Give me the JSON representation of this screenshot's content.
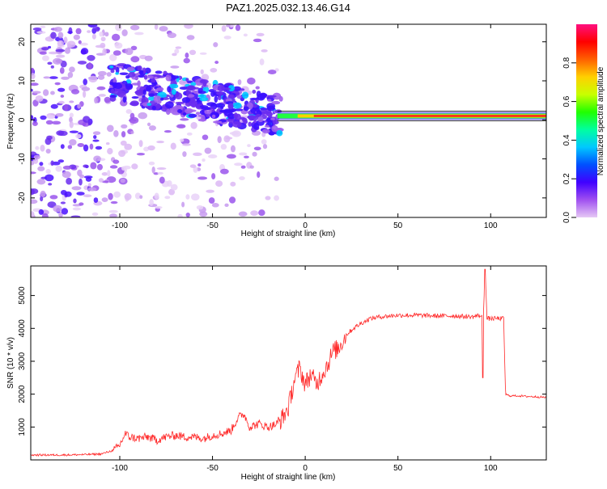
{
  "title": "PAZ1.2025.032.13.46.G14",
  "chart_data": [
    {
      "type": "heatmap",
      "xlabel": "Height of straight line (km)",
      "ylabel": "Frequency (Hz)",
      "xlim": [
        -148,
        130
      ],
      "ylim": [
        -25,
        24.5
      ],
      "x_ticks": [
        "-100",
        "-50",
        "0",
        "50",
        "100"
      ],
      "y_ticks": [
        "20",
        "10",
        "0",
        "-10",
        "-20"
      ],
      "grid": false,
      "colorbar": {
        "label": "Normalized spectral amplitude",
        "range": [
          0,
          1
        ],
        "ticks": [
          "0.0",
          "0.2",
          "0.4",
          "0.6",
          "0.8"
        ],
        "colors": [
          "#e6c8f5",
          "#a050f0",
          "#4000ff",
          "#0050ff",
          "#00c8ff",
          "#00ffa0",
          "#20ff00",
          "#c8ff00",
          "#ffd000",
          "#ff6000",
          "#ff0000",
          "#ff1080"
        ]
      },
      "features": {
        "dominant_line_frequency_hz": 1.0,
        "line_start_height_km": -15,
        "noisy_region_height_km": [
          -148,
          -15
        ]
      }
    },
    {
      "type": "line",
      "xlabel": "Height of straight line (km)",
      "ylabel": "SNR (10 * v/v)",
      "xlim": [
        -148,
        130
      ],
      "ylim": [
        0,
        5900
      ],
      "x_ticks": [
        "-100",
        "-50",
        "0",
        "50",
        "100"
      ],
      "y_ticks": [
        "1000",
        "2000",
        "3000",
        "4000",
        "5000"
      ],
      "grid": false,
      "line_color": "#ff2a2a",
      "series": [
        {
          "x": [
            -148,
            -140,
            -130,
            -120,
            -110,
            -103,
            -100,
            -97,
            -95,
            -90,
            -85,
            -80,
            -75,
            -70,
            -65,
            -60,
            -55,
            -50,
            -45,
            -40,
            -36,
            -33,
            -30,
            -25,
            -20,
            -15,
            -12,
            -9,
            -6,
            -3,
            0,
            3,
            6,
            9,
            12,
            15,
            18,
            22,
            26,
            30,
            35,
            40,
            50,
            60,
            70,
            80,
            90,
            94,
            96,
            97,
            98,
            100,
            104,
            107,
            108,
            110,
            115,
            120,
            125,
            130
          ],
          "y": [
            150,
            150,
            150,
            160,
            180,
            300,
            450,
            800,
            700,
            650,
            700,
            600,
            700,
            750,
            700,
            700,
            650,
            750,
            800,
            900,
            1300,
            1400,
            1000,
            1100,
            1000,
            1100,
            1300,
            1600,
            2400,
            2800,
            2300,
            2600,
            2300,
            2600,
            2900,
            3300,
            3400,
            3800,
            4000,
            4150,
            4300,
            4350,
            4400,
            4400,
            4380,
            4380,
            4350,
            4400,
            4300,
            5800,
            4300,
            4300,
            4300,
            4300,
            2000,
            1950,
            1950,
            1930,
            1920,
            1900
          ]
        }
      ]
    }
  ]
}
